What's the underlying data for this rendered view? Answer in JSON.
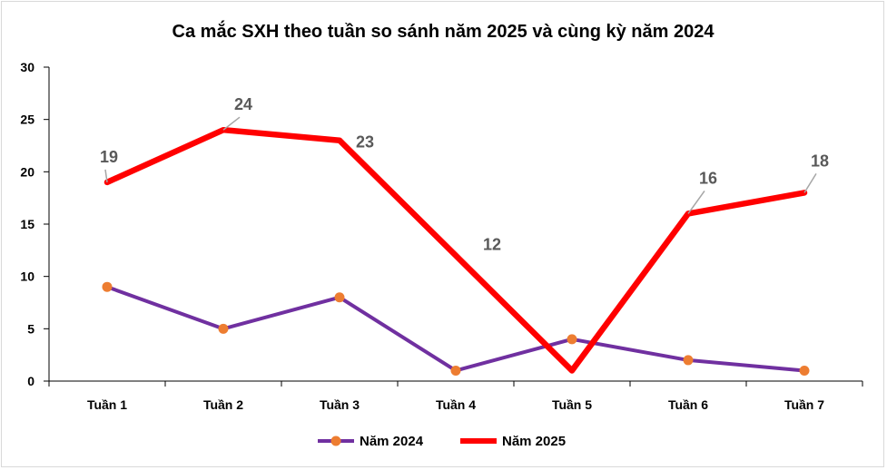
{
  "chart_data": {
    "type": "line",
    "title": "Ca mắc SXH theo tuần so sánh năm 2025 và cùng kỳ năm 2024",
    "categories": [
      "Tuần 1",
      "Tuần 2",
      "Tuần 3",
      "Tuần 4",
      "Tuần 5",
      "Tuần 6",
      "Tuần 7"
    ],
    "ylim": [
      0,
      30
    ],
    "yticks": [
      "0",
      "5",
      "10",
      "15",
      "20",
      "25",
      "30"
    ],
    "grid": false,
    "legend_position": "bottom",
    "series": [
      {
        "name": "Năm 2024",
        "values": [
          9,
          5,
          8,
          1,
          4,
          2,
          1
        ],
        "line_color": "#7030a0",
        "marker_color": "#ed7d31",
        "labels": []
      },
      {
        "name": "Năm 2025",
        "values": [
          19,
          24,
          23,
          12,
          1,
          16,
          18
        ],
        "line_color": "#ff0000",
        "marker_color": null,
        "labels": [
          "19",
          "24",
          "23",
          "12",
          "",
          "16",
          "18"
        ]
      }
    ]
  }
}
